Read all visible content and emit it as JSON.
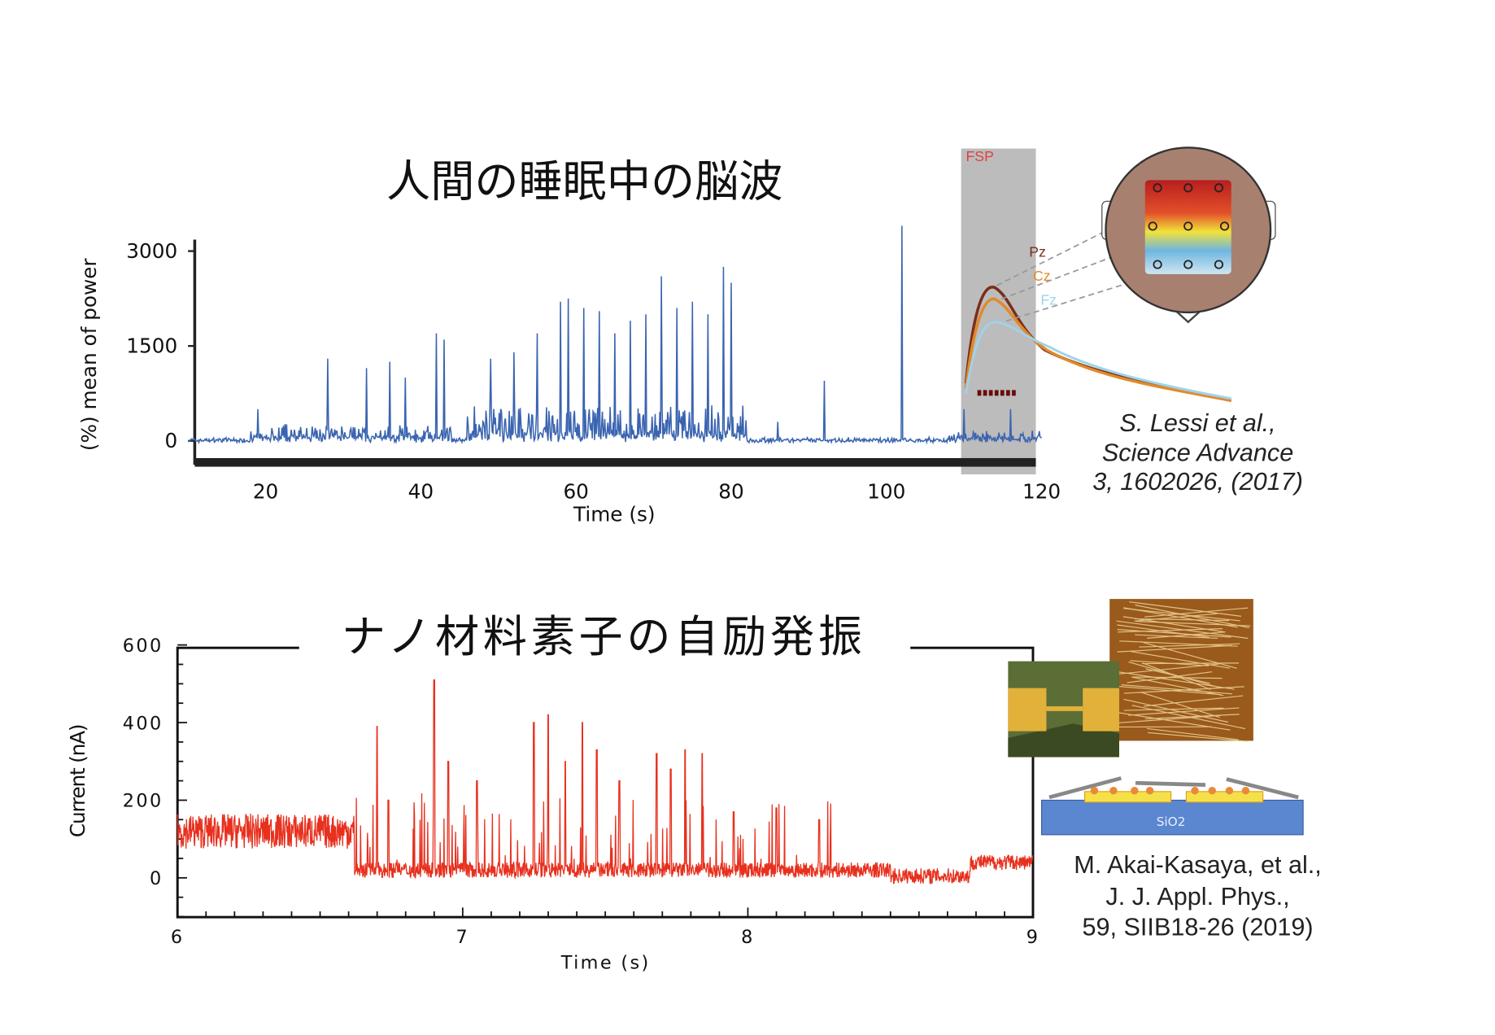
{
  "chart_data": [
    {
      "type": "line",
      "title": "人間の睡眠中の脳波",
      "xlabel": "Time (s)",
      "ylabel": "(%) mean of power",
      "xlim": [
        10,
        120
      ],
      "ylim": [
        -400,
        3500
      ],
      "xticks": [
        "20",
        "40",
        "60",
        "80",
        "100",
        "120"
      ],
      "yticks": [
        "3000",
        "1500",
        "0"
      ],
      "baseline": 0,
      "color": "#3a64b0",
      "burst_regions": [
        [
          18,
          44,
          250
        ],
        [
          46,
          82,
          550
        ],
        [
          108,
          120,
          150
        ]
      ],
      "peaks": [
        [
          19,
          500
        ],
        [
          28,
          1300
        ],
        [
          33,
          1150
        ],
        [
          36,
          1250
        ],
        [
          38,
          1000
        ],
        [
          42,
          1700
        ],
        [
          43,
          1600
        ],
        [
          49,
          1300
        ],
        [
          52,
          1400
        ],
        [
          55,
          1700
        ],
        [
          58,
          2200
        ],
        [
          59,
          2250
        ],
        [
          61,
          2100
        ],
        [
          63,
          2050
        ],
        [
          65,
          1700
        ],
        [
          67,
          1900
        ],
        [
          69,
          2000
        ],
        [
          71,
          2600
        ],
        [
          73,
          2100
        ],
        [
          75,
          2200
        ],
        [
          77,
          2000
        ],
        [
          79,
          2750
        ],
        [
          80,
          2500
        ],
        [
          86,
          300
        ],
        [
          92,
          950
        ],
        [
          102,
          3400
        ],
        [
          110,
          500
        ],
        [
          116,
          500
        ]
      ],
      "annotations": {
        "highlight_label": "FSP",
        "electrodes": [
          "Pz",
          "Cz",
          "Fz"
        ]
      },
      "citation": [
        "S. Lessi et al.,",
        "Science Advance",
        "3, 1602026, (2017)"
      ]
    },
    {
      "type": "line",
      "title": "ナノ材料素子の自励発振",
      "xlabel": "Time (s)",
      "ylabel": "Current (nA)",
      "xlim": [
        6,
        9
      ],
      "ylim": [
        -100,
        600
      ],
      "xticks": [
        "6",
        "7",
        "8",
        "9"
      ],
      "yticks": [
        "600",
        "400",
        "200",
        "0"
      ],
      "color": "#e8301e",
      "segments": [
        [
          6,
          6.62,
          120
        ],
        [
          6.62,
          8.5,
          20
        ],
        [
          8.5,
          8.78,
          5
        ],
        [
          8.78,
          9,
          40
        ]
      ],
      "peaks": [
        [
          6.7,
          390
        ],
        [
          6.74,
          200
        ],
        [
          6.9,
          510
        ],
        [
          6.95,
          300
        ],
        [
          7.05,
          250
        ],
        [
          7.25,
          400
        ],
        [
          7.3,
          420
        ],
        [
          7.36,
          300
        ],
        [
          7.42,
          400
        ],
        [
          7.47,
          330
        ],
        [
          7.55,
          250
        ],
        [
          7.68,
          320
        ],
        [
          7.73,
          280
        ],
        [
          7.78,
          330
        ],
        [
          7.84,
          320
        ],
        [
          7.95,
          170
        ],
        [
          8.1,
          180
        ],
        [
          8.25,
          150
        ]
      ],
      "citation": [
        "M. Akai-Kasaya, et al.,",
        "J. J. Appl. Phys.,",
        "59, SIIB18-26 (2019)"
      ],
      "diagram_label": "SiO2"
    }
  ]
}
